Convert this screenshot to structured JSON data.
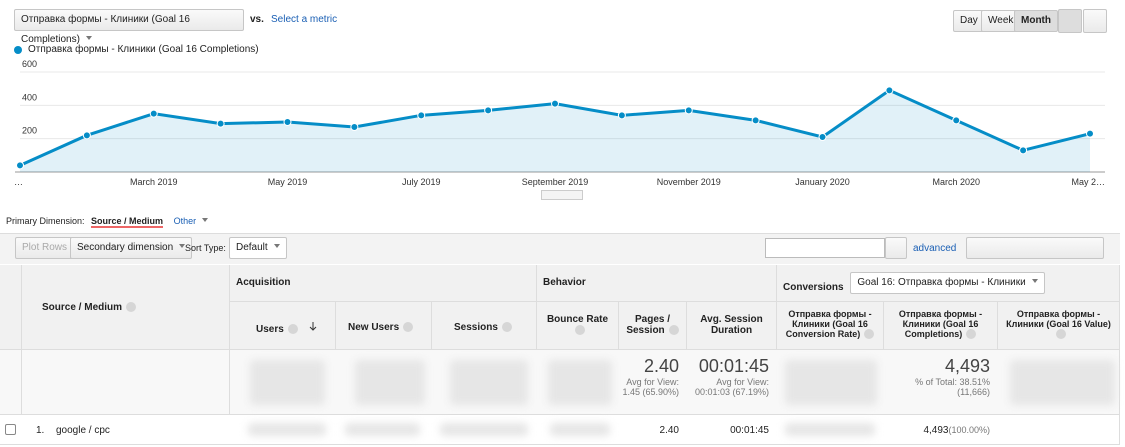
{
  "header": {
    "metric_select": "Отправка формы - Клиники (Goal 16 Completions)",
    "vs": "vs.",
    "select_metric": "Select a metric",
    "buttons": [
      "Day",
      "Week",
      "Month"
    ]
  },
  "chart_data": {
    "type": "line",
    "series": [
      {
        "name": "Отправка формы - Клиники (Goal 16 Completions)",
        "color": "#058dc7",
        "values": [
          40,
          220,
          350,
          290,
          300,
          270,
          340,
          370,
          410,
          340,
          370,
          310,
          210,
          490,
          310,
          130,
          230
        ]
      }
    ],
    "categories": [
      "…",
      null,
      "March 2019",
      null,
      "May 2019",
      null,
      "July 2019",
      null,
      "September 2019",
      null,
      "November 2019",
      null,
      "January 2020",
      null,
      "March 2020",
      null,
      "May 2…"
    ],
    "ylim": [
      0,
      600
    ],
    "yticks": [
      200,
      400,
      600
    ],
    "grid": true
  },
  "dimension": {
    "label": "Primary Dimension:",
    "value": "Source / Medium",
    "other": "Other"
  },
  "toolbar": {
    "plot_rows": "Plot Rows",
    "secondary": "Secondary dimension",
    "sort_type": "Sort Type:",
    "sort_value": "Default",
    "advanced": "advanced"
  },
  "table": {
    "groups": [
      "Acquisition",
      "Behavior",
      "Conversions"
    ],
    "goal_select": "Goal 16: Отправка формы - Клиники",
    "columns": [
      "Source / Medium",
      "Users",
      "New Users",
      "Sessions",
      "Bounce Rate",
      "Pages / Session",
      "Avg. Session Duration",
      "Отправка формы - Клиники (Goal 16 Conversion Rate)",
      "Отправка формы - Клиники (Goal 16 Completions)",
      "Отправка формы - Клиники (Goal 16 Value)"
    ],
    "totals": {
      "pages_session": "2.40",
      "pages_session_note": "Avg for View: 1.45 (65.90%)",
      "duration": "00:01:45",
      "duration_note": "Avg for View: 00:01:03 (67.19%)",
      "completions": "4,493",
      "completions_note": "% of Total: 38.51% (11,666)"
    },
    "rows": [
      {
        "index": "1.",
        "source": "google / cpc",
        "pages_session": "2.40",
        "duration": "00:01:45",
        "completions": "4,493",
        "completions_pct": "(100.00%)"
      }
    ]
  }
}
